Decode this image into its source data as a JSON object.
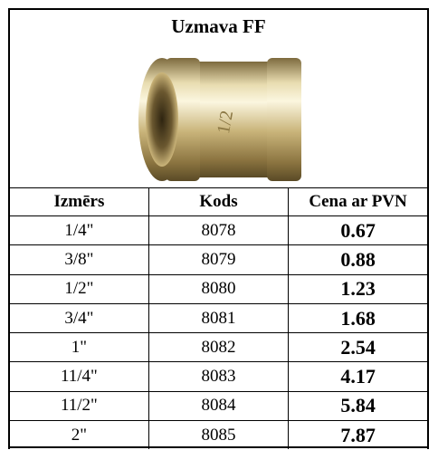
{
  "header": {
    "title": "Uzmava FF"
  },
  "table": {
    "columns": [
      "Izmērs",
      "Kods",
      "Cena ar PVN"
    ],
    "rows": [
      [
        "1/4\"",
        "8078",
        "0.67"
      ],
      [
        "3/8\"",
        "8079",
        "0.88"
      ],
      [
        "1/2\"",
        "8080",
        "1.23"
      ],
      [
        "3/4\"",
        "8081",
        "1.68"
      ],
      [
        "1\"",
        "8082",
        "2.54"
      ],
      [
        "11/4\"",
        "8083",
        "4.17"
      ],
      [
        "11/2\"",
        "8084",
        "5.84"
      ],
      [
        "2\"",
        "8085",
        "7.87"
      ]
    ]
  }
}
